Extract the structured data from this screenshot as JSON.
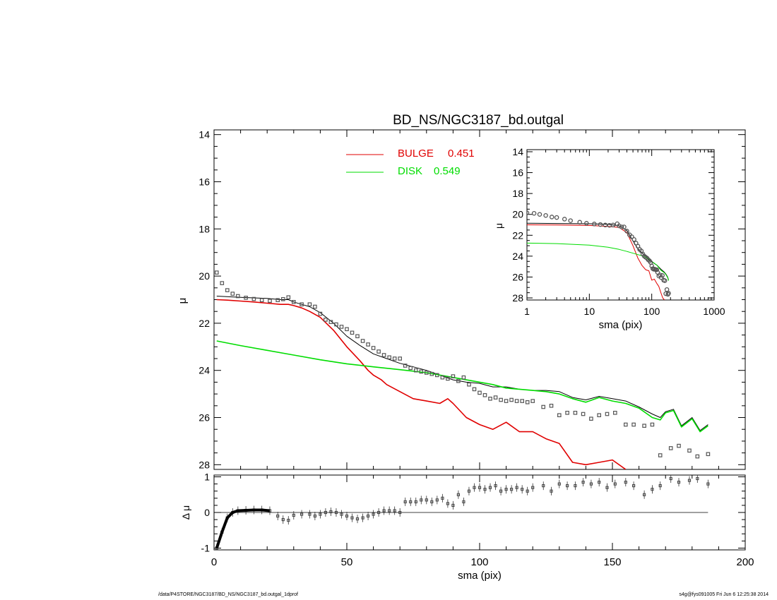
{
  "title": "BD_NS/NGC3187_bd.outgal",
  "footer": {
    "path": "/data/P4STORE/NGC3187/BD_NS/NGC3187_bd.outgal_1dprof",
    "stamp": "s4g@fys091005  Fri Jun  6 12:25:38 2014"
  },
  "colors": {
    "bulge": "#e00000",
    "disk": "#00dd00",
    "total": "#000000",
    "data": "#555555"
  },
  "chart_data": [
    {
      "id": "main",
      "type": "line",
      "title": "BD_NS/NGC3187_bd.outgal",
      "xlabel": "",
      "ylabel": "μ",
      "xlim": [
        0,
        200
      ],
      "ylim": [
        28.2,
        13.8
      ],
      "yticks": [
        14,
        16,
        18,
        20,
        22,
        24,
        26,
        28
      ],
      "legend": [
        {
          "name": "BULGE",
          "value": "0.451",
          "color": "#e00000"
        },
        {
          "name": "DISK",
          "value": "0.549",
          "color": "#00dd00"
        }
      ],
      "series": [
        {
          "name": "BULGE",
          "color": "#e00000",
          "x": [
            1,
            5,
            10,
            15,
            20,
            25,
            28,
            30,
            33,
            36,
            40,
            45,
            50,
            55,
            58,
            60,
            63,
            65,
            70,
            75,
            80,
            85,
            88,
            90,
            95,
            100,
            105,
            110,
            115,
            120,
            125,
            130,
            135,
            140,
            145,
            150,
            155
          ],
          "y": [
            21.0,
            21.02,
            21.06,
            21.1,
            21.15,
            21.2,
            21.2,
            21.25,
            21.35,
            21.5,
            21.75,
            22.3,
            23.0,
            23.6,
            24.0,
            24.2,
            24.4,
            24.6,
            24.9,
            25.2,
            25.3,
            25.4,
            25.2,
            25.4,
            26.0,
            26.3,
            26.5,
            26.2,
            26.6,
            26.6,
            26.9,
            27.1,
            27.9,
            28.0,
            27.9,
            27.8,
            28.2
          ]
        },
        {
          "name": "DISK",
          "color": "#00dd00",
          "x": [
            1,
            10,
            20,
            30,
            40,
            50,
            60,
            70,
            80,
            90,
            100,
            105,
            110,
            115,
            120,
            125,
            130,
            135,
            140,
            145,
            150,
            155,
            160,
            165,
            168,
            170,
            173,
            176,
            180,
            183,
            186
          ],
          "y": [
            22.75,
            22.95,
            23.15,
            23.35,
            23.55,
            23.72,
            23.85,
            23.97,
            24.1,
            24.3,
            24.5,
            24.6,
            24.75,
            24.8,
            24.85,
            24.9,
            25.0,
            25.2,
            25.35,
            25.15,
            25.3,
            25.4,
            25.6,
            26.0,
            26.1,
            25.8,
            25.7,
            26.4,
            26.05,
            26.6,
            26.35
          ]
        },
        {
          "name": "TOTAL",
          "color": "#000000",
          "x": [
            1,
            10,
            20,
            25,
            28,
            30,
            33,
            36,
            40,
            45,
            50,
            55,
            60,
            65,
            70,
            75,
            80,
            85,
            90,
            95,
            100,
            105,
            110,
            115,
            120,
            125,
            130,
            135,
            140,
            145,
            150,
            155,
            160,
            165,
            168,
            170,
            173,
            176,
            180,
            183,
            186
          ],
          "y": [
            20.85,
            20.9,
            20.95,
            21.0,
            21.0,
            21.1,
            21.2,
            21.3,
            21.55,
            22.0,
            22.55,
            22.95,
            23.3,
            23.5,
            23.7,
            23.85,
            24.0,
            24.2,
            24.4,
            24.5,
            24.55,
            24.7,
            24.7,
            24.8,
            24.85,
            24.85,
            24.9,
            25.15,
            25.25,
            25.1,
            25.2,
            25.3,
            25.55,
            25.85,
            26.0,
            25.75,
            25.65,
            26.35,
            26.0,
            26.55,
            26.3
          ]
        },
        {
          "name": "DATA",
          "color": "#555555",
          "x": [
            1,
            3,
            5,
            7,
            9,
            12,
            15,
            18,
            21,
            24,
            26,
            28,
            30,
            33,
            36,
            38,
            40,
            42,
            44,
            46,
            48,
            50,
            52,
            54,
            56,
            58,
            60,
            62,
            64,
            66,
            68,
            70,
            72,
            74,
            76,
            78,
            80,
            82,
            84,
            86,
            88,
            90,
            92,
            94,
            96,
            98,
            100,
            102,
            104,
            106,
            108,
            110,
            112,
            114,
            116,
            118,
            120,
            124,
            127,
            130,
            133,
            136,
            139,
            142,
            145,
            148,
            151,
            155,
            158,
            162,
            165,
            168,
            172,
            175,
            179,
            182,
            186
          ],
          "y": [
            19.85,
            20.3,
            20.6,
            20.75,
            20.85,
            20.92,
            20.97,
            21.02,
            21.05,
            21.02,
            20.98,
            20.9,
            21.1,
            21.2,
            21.2,
            21.3,
            21.6,
            21.85,
            21.95,
            22.05,
            22.15,
            22.25,
            22.4,
            22.55,
            22.75,
            22.9,
            23.05,
            23.2,
            23.35,
            23.45,
            23.5,
            23.5,
            23.8,
            23.9,
            24.0,
            24.05,
            24.1,
            24.15,
            24.2,
            24.3,
            24.35,
            24.25,
            24.45,
            24.3,
            24.6,
            24.8,
            24.95,
            25.05,
            25.2,
            25.15,
            25.25,
            25.3,
            25.25,
            25.3,
            25.3,
            25.35,
            25.3,
            25.55,
            25.5,
            25.9,
            25.8,
            25.8,
            25.85,
            26.05,
            25.9,
            25.85,
            25.8,
            26.3,
            26.3,
            26.35,
            26.3,
            27.6,
            27.3,
            27.2,
            27.4,
            27.65,
            27.55
          ]
        }
      ]
    },
    {
      "id": "residual",
      "type": "scatter",
      "xlabel": "sma (pix)",
      "ylabel": "Δ μ",
      "xlim": [
        0,
        200
      ],
      "ylim": [
        -1.05,
        1.05
      ],
      "xticks": [
        0,
        50,
        100,
        150,
        200
      ],
      "yticks": [
        -1,
        0,
        1
      ],
      "series": [
        {
          "name": "RESIDUAL",
          "color": "#000000",
          "x": [
            1,
            3,
            5,
            7,
            9,
            12,
            15,
            18,
            21,
            24,
            26,
            28,
            30,
            33,
            36,
            38,
            40,
            42,
            44,
            46,
            48,
            50,
            52,
            54,
            56,
            58,
            60,
            62,
            64,
            66,
            68,
            70,
            72,
            74,
            76,
            78,
            80,
            82,
            84,
            86,
            88,
            90,
            92,
            94,
            96,
            98,
            100,
            102,
            104,
            106,
            108,
            110,
            112,
            114,
            116,
            118,
            120,
            124,
            127,
            130,
            133,
            136,
            139,
            142,
            145,
            148,
            151,
            155,
            158,
            162,
            165,
            168,
            172,
            175,
            179,
            182,
            186
          ],
          "y": [
            -1.0,
            -0.55,
            -0.15,
            0.0,
            0.05,
            0.06,
            0.07,
            0.07,
            0.05,
            -0.1,
            -0.2,
            -0.22,
            -0.08,
            -0.05,
            -0.05,
            -0.1,
            -0.05,
            0.0,
            0.02,
            0.0,
            -0.05,
            -0.1,
            -0.15,
            -0.18,
            -0.15,
            -0.1,
            -0.05,
            0.0,
            0.05,
            0.05,
            0.05,
            0.0,
            0.3,
            0.3,
            0.3,
            0.35,
            0.35,
            0.3,
            0.35,
            0.4,
            0.25,
            0.2,
            0.5,
            0.3,
            0.6,
            0.7,
            0.7,
            0.65,
            0.7,
            0.75,
            0.6,
            0.65,
            0.65,
            0.7,
            0.65,
            0.6,
            0.7,
            0.75,
            0.6,
            0.8,
            0.75,
            0.75,
            0.85,
            0.8,
            0.85,
            0.7,
            0.8,
            0.85,
            0.75,
            0.5,
            0.65,
            0.75,
            0.95,
            0.85,
            0.9,
            0.95,
            0.8
          ]
        },
        {
          "name": "ZERO",
          "color": "#000000",
          "x": [
            1,
            186
          ],
          "y": [
            0,
            0
          ]
        }
      ]
    },
    {
      "id": "inset",
      "type": "line",
      "xlabel": "sma (pix)",
      "ylabel": "μ",
      "xscale": "log",
      "xlim": [
        1,
        1000
      ],
      "ylim": [
        28.2,
        13.8
      ],
      "xticks": [
        1,
        10,
        100,
        1000
      ],
      "xtick_labels": [
        "1",
        "10",
        "100",
        "1000"
      ],
      "yticks": [
        14,
        16,
        18,
        20,
        22,
        24,
        26,
        28
      ],
      "series": [
        {
          "name": "BULGE",
          "color": "#e00000",
          "x": [
            1,
            3,
            10,
            20,
            30,
            40,
            50,
            60,
            70,
            80,
            90,
            100,
            110,
            120,
            130,
            140,
            150,
            160
          ],
          "y": [
            21.0,
            21.02,
            21.06,
            21.15,
            21.25,
            21.75,
            23.0,
            24.2,
            24.9,
            25.3,
            25.4,
            26.3,
            26.2,
            26.6,
            26.9,
            27.5,
            28.0,
            28.2
          ]
        },
        {
          "name": "DISK",
          "color": "#00dd00",
          "x": [
            1,
            3,
            10,
            20,
            30,
            40,
            50,
            60,
            70,
            80,
            90,
            100,
            120,
            140,
            160,
            170,
            180,
            186
          ],
          "y": [
            22.75,
            22.8,
            22.95,
            23.15,
            23.35,
            23.55,
            23.72,
            23.85,
            23.97,
            24.1,
            24.3,
            24.5,
            24.85,
            25.35,
            25.6,
            25.8,
            26.05,
            26.35
          ]
        },
        {
          "name": "TOTAL",
          "color": "#000000",
          "x": [
            1,
            3,
            10,
            20,
            30,
            40,
            50,
            60,
            70,
            80,
            90,
            100,
            120,
            140,
            160,
            170,
            180,
            186
          ],
          "y": [
            20.85,
            20.87,
            20.9,
            20.95,
            21.1,
            21.55,
            22.55,
            23.3,
            23.7,
            24.0,
            24.4,
            24.55,
            24.85,
            25.25,
            25.55,
            25.75,
            26.0,
            26.3
          ]
        },
        {
          "name": "DATA",
          "color": "#555555",
          "x": [
            1,
            1.3,
            1.6,
            2,
            2.5,
            3,
            4,
            5,
            7,
            9,
            12,
            15,
            18,
            21,
            24,
            28,
            30,
            33,
            36,
            40,
            44,
            48,
            52,
            56,
            60,
            64,
            68,
            72,
            76,
            80,
            84,
            88,
            92,
            96,
            100,
            104,
            108,
            112,
            116,
            120,
            124,
            130,
            136,
            142,
            148,
            155,
            162,
            168,
            175,
            182,
            186
          ],
          "y": [
            19.85,
            19.9,
            20.0,
            20.1,
            20.25,
            20.3,
            20.45,
            20.6,
            20.75,
            20.85,
            20.92,
            20.97,
            21.02,
            21.05,
            21.02,
            20.9,
            21.1,
            21.2,
            21.2,
            21.6,
            21.95,
            22.15,
            22.4,
            22.75,
            23.05,
            23.35,
            23.5,
            23.8,
            24.0,
            24.1,
            24.2,
            24.35,
            24.45,
            24.6,
            24.95,
            25.2,
            25.25,
            25.25,
            25.3,
            25.3,
            25.55,
            25.9,
            25.8,
            26.05,
            25.85,
            26.3,
            26.35,
            27.6,
            27.2,
            27.65,
            27.55
          ]
        }
      ]
    }
  ]
}
